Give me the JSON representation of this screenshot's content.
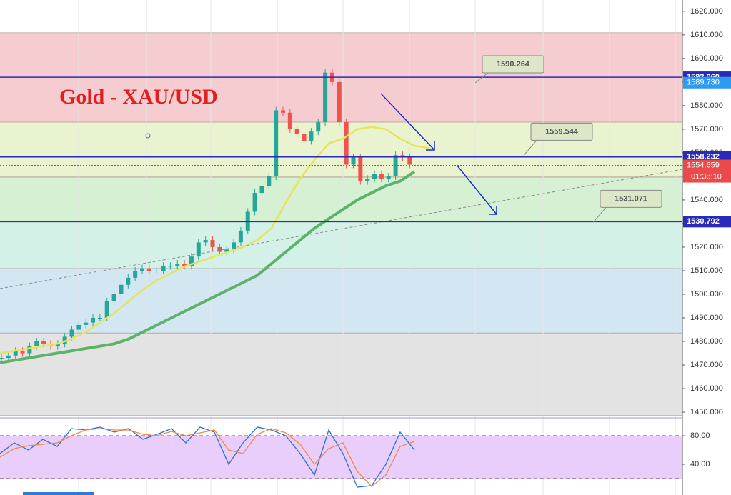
{
  "chart_data": {
    "type": "candlestick",
    "title": "Gold - XAU/USD",
    "values": [
      1473,
      1474,
      1476,
      1475,
      1478,
      1480,
      1479,
      1478,
      1479,
      1482,
      1485,
      1487,
      1488,
      1490,
      1490,
      1497,
      1500,
      1504,
      1507,
      1510,
      1511,
      1510,
      1510,
      1512,
      1512,
      1513,
      1512,
      1516,
      1522,
      1523,
      1520,
      1518,
      1519,
      1522,
      1527,
      1535,
      1543,
      1546,
      1550,
      1578,
      1577,
      1570,
      1568,
      1565,
      1569,
      1573,
      1594,
      1590,
      1573,
      1555,
      1558,
      1548,
      1549,
      1551,
      1549,
      1550,
      1559,
      1558,
      1555
    ],
    "up_color": "#26a69a",
    "down_color": "#ef5350",
    "ylim": [
      1448.5,
      1624.8
    ],
    "yticks": [
      {
        "value": 1450,
        "label": "1450.000"
      },
      {
        "value": 1460,
        "label": "1460.000"
      },
      {
        "value": 1470,
        "label": "1470.000"
      },
      {
        "value": 1480,
        "label": "1480.000"
      },
      {
        "value": 1490,
        "label": "1490.000"
      },
      {
        "value": 1500,
        "label": "1500.000"
      },
      {
        "value": 1510,
        "label": "1510.000"
      },
      {
        "value": 1520,
        "label": "1520.000"
      },
      {
        "value": 1530,
        "label": "1530.000"
      },
      {
        "value": 1540,
        "label": "1540.000"
      },
      {
        "value": 1550,
        "label": "1550.000"
      },
      {
        "value": 1560,
        "label": "1560.000"
      },
      {
        "value": 1570,
        "label": "1570.000"
      },
      {
        "value": 1580,
        "label": "1580.000"
      },
      {
        "value": 1590,
        "label": "1590.000"
      },
      {
        "value": 1600,
        "label": "1600.000"
      },
      {
        "value": 1610,
        "label": "1610.000"
      },
      {
        "value": 1620,
        "label": "1620.000"
      }
    ],
    "zones": [
      {
        "from": 1573,
        "to": 1610.9,
        "color": "#f5cccf"
      },
      {
        "from": 1549.7,
        "to": 1573,
        "color": "#e9f3cf"
      },
      {
        "from": 1530.8,
        "to": 1549.7,
        "color": "#d5f0d3"
      },
      {
        "from": 1510.9,
        "to": 1530.8,
        "color": "#d3f1e6"
      },
      {
        "from": 1483.6,
        "to": 1510.9,
        "color": "#d3e7f3"
      },
      {
        "from": 1448.5,
        "to": 1483.6,
        "color": "#e3e3e3"
      }
    ],
    "moving_averages": [
      {
        "color": "#e8e45a",
        "values": [
          1475,
          1476,
          1477,
          1478,
          1479,
          1481,
          1484,
          1488,
          1492,
          1497,
          1502,
          1506,
          1509,
          1512,
          1514,
          1516,
          1518,
          1520,
          1523,
          1528,
          1539,
          1549,
          1557,
          1564,
          1566,
          1570,
          1571,
          1570,
          1566,
          1563,
          1562
        ]
      },
      {
        "color": "#5cb46a",
        "values": [
          1471,
          1472,
          1473,
          1474,
          1475,
          1476,
          1477,
          1478,
          1479,
          1481,
          1484,
          1487,
          1490,
          1493,
          1496,
          1499,
          1502,
          1505,
          1508,
          1513,
          1518,
          1523,
          1528,
          1532,
          1536,
          1540,
          1543,
          1546,
          1548,
          1552
        ]
      }
    ],
    "levels": [
      {
        "value": 1592.06,
        "label": "1592.060"
      },
      {
        "value": 1558.232,
        "label": "1558.232"
      },
      {
        "value": 1530.792,
        "label": "1530.792"
      }
    ],
    "level_color": "#2a2ab8",
    "bid": {
      "value": 1589.73,
      "label": "1589.730"
    },
    "last": {
      "value": 1554.659,
      "label": "1554.659",
      "countdown": "01:38:10"
    },
    "annotations": [
      {
        "value": 1590.264,
        "label": "1590.264"
      },
      {
        "value": 1559.544,
        "label": "1559.544"
      },
      {
        "value": 1531.071,
        "label": "1531.071"
      }
    ],
    "oscillator": {
      "ylim": [
        -3,
        105
      ],
      "yticks": [
        {
          "value": 80,
          "label": "80.00"
        },
        {
          "value": 40,
          "label": "40.00"
        }
      ],
      "bands": [
        20,
        80
      ],
      "k": [
        55,
        70,
        60,
        75,
        65,
        90,
        88,
        92,
        85,
        90,
        75,
        82,
        90,
        70,
        92,
        85,
        40,
        70,
        92,
        88,
        80,
        55,
        25,
        88,
        55,
        8,
        10,
        40,
        85,
        60
      ],
      "d": [
        50,
        62,
        66,
        68,
        70,
        80,
        88,
        90,
        88,
        88,
        82,
        80,
        86,
        80,
        84,
        88,
        60,
        55,
        82,
        90,
        84,
        68,
        40,
        62,
        70,
        30,
        9,
        25,
        65,
        72
      ]
    }
  }
}
